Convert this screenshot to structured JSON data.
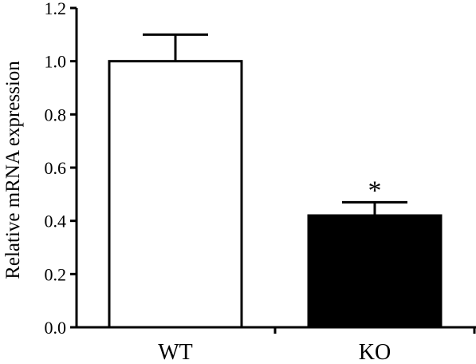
{
  "chart_data": {
    "type": "bar",
    "categories": [
      "WT",
      "KO"
    ],
    "values": [
      1.0,
      0.42
    ],
    "errors": [
      0.1,
      0.05
    ],
    "bar_colors": [
      "#ffffff",
      "#000000"
    ],
    "annotations": [
      {
        "category": "KO",
        "text": "*"
      }
    ],
    "title": "",
    "xlabel": "",
    "ylabel": "Relative mRNA expression",
    "ylim": [
      0,
      1.2
    ],
    "yticks": [
      "0.0",
      "0.2",
      "0.4",
      "0.6",
      "0.8",
      "1.0",
      "1.2"
    ],
    "grid": false
  }
}
